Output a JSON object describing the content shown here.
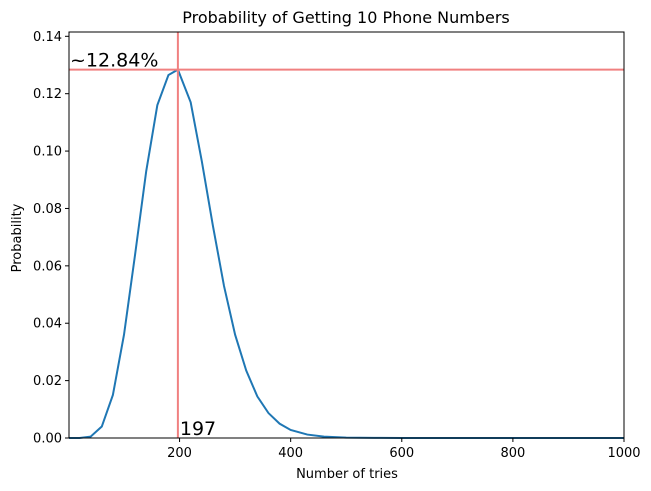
{
  "chart_data": {
    "type": "line",
    "title": "Probability of Getting 10 Phone Numbers",
    "xlabel": "Number of tries",
    "ylabel": "Probability",
    "xlim": [
      1,
      1000
    ],
    "ylim": [
      0,
      0.1415
    ],
    "xticks": [
      200,
      400,
      600,
      800,
      1000
    ],
    "xtick_labels": [
      "200",
      "400",
      "600",
      "800",
      "1000"
    ],
    "yticks": [
      0,
      0.02,
      0.04,
      0.06,
      0.08,
      0.1,
      0.12,
      0.14
    ],
    "ytick_labels": [
      "0.00",
      "0.02",
      "0.04",
      "0.06",
      "0.08",
      "0.10",
      "0.12",
      "0.14"
    ],
    "grid": false,
    "series": [
      {
        "color": "#1f77b4",
        "x": [
          1,
          20,
          40,
          60,
          80,
          100,
          120,
          140,
          160,
          180,
          197,
          220,
          240,
          260,
          280,
          300,
          320,
          340,
          360,
          380,
          400,
          430,
          460,
          500,
          550,
          600,
          700,
          800,
          1000
        ],
        "values": [
          0,
          0,
          0.0005,
          0.004,
          0.015,
          0.036,
          0.064,
          0.093,
          0.116,
          0.1265,
          0.1284,
          0.117,
          0.0965,
          0.074,
          0.053,
          0.036,
          0.0235,
          0.0145,
          0.0087,
          0.005,
          0.0028,
          0.0012,
          0.0005,
          0.00015,
          3e-05,
          6e-06,
          0,
          0,
          0
        ]
      }
    ],
    "reference_lines": {
      "color": "#f08080",
      "vertical_x": 197,
      "horizontal_y": 0.1284
    },
    "annotations": {
      "peak_label": "~12.84%",
      "x_label": "197"
    }
  }
}
